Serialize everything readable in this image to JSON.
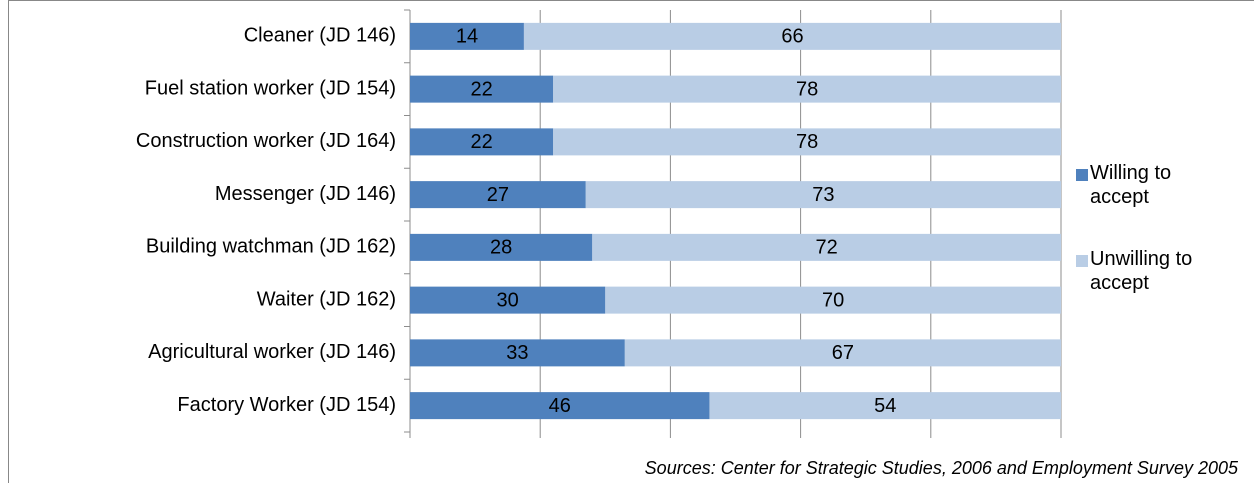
{
  "chart_data": {
    "type": "bar",
    "orientation": "horizontal",
    "stacking": "percent",
    "categories": [
      "Cleaner (JD 146)",
      "Fuel station worker (JD 154)",
      "Construction worker (JD 164)",
      "Messenger (JD 146)",
      "Building watchman (JD 162)",
      "Waiter (JD 162)",
      "Agricultural worker (JD 146)",
      "Factory Worker (JD 154)"
    ],
    "series": [
      {
        "name": "Willing to accept",
        "color": "#4f81bd",
        "values": [
          14,
          22,
          22,
          27,
          28,
          30,
          33,
          46
        ]
      },
      {
        "name": "Unwilling to accept",
        "color": "#b9cde5",
        "values": [
          66,
          78,
          78,
          73,
          72,
          70,
          67,
          54
        ]
      }
    ],
    "xlim": [
      0,
      100
    ],
    "xticks": [
      0,
      20,
      40,
      60,
      80,
      100
    ],
    "grid": true,
    "legend": "right",
    "source": "Sources: Center for Strategic Studies, 2006 and Employment Survey 2005"
  }
}
